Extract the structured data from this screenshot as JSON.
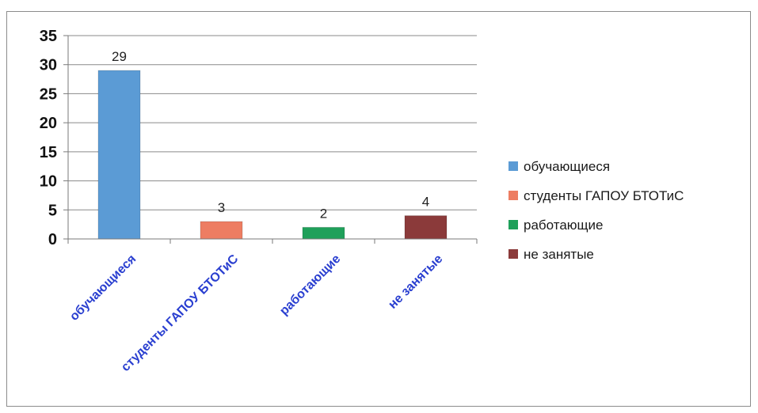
{
  "chart_data": {
    "type": "bar",
    "categories": [
      "обучающиеся",
      "студенты ГАПОУ БТОТиС",
      "работающие",
      "не занятые"
    ],
    "values": [
      29,
      3,
      2,
      4
    ],
    "data_labels": [
      "29",
      "3",
      "2",
      "4"
    ],
    "colors": [
      "#5b9bd5",
      "#ed7d62",
      "#1fa05a",
      "#8b3a3a"
    ],
    "ylim": [
      0,
      35
    ],
    "yticks": [
      0,
      5,
      10,
      15,
      20,
      25,
      30,
      35
    ],
    "ytick_labels": [
      "0",
      "5",
      "10",
      "15",
      "20",
      "25",
      "30",
      "35"
    ],
    "grid": true,
    "title": "",
    "xlabel": "",
    "ylabel": "",
    "legend": {
      "position": "right",
      "entries": [
        "обучающиеся",
        "студенты ГАПОУ БТОТиС",
        "работающие",
        "не занятые"
      ]
    }
  }
}
